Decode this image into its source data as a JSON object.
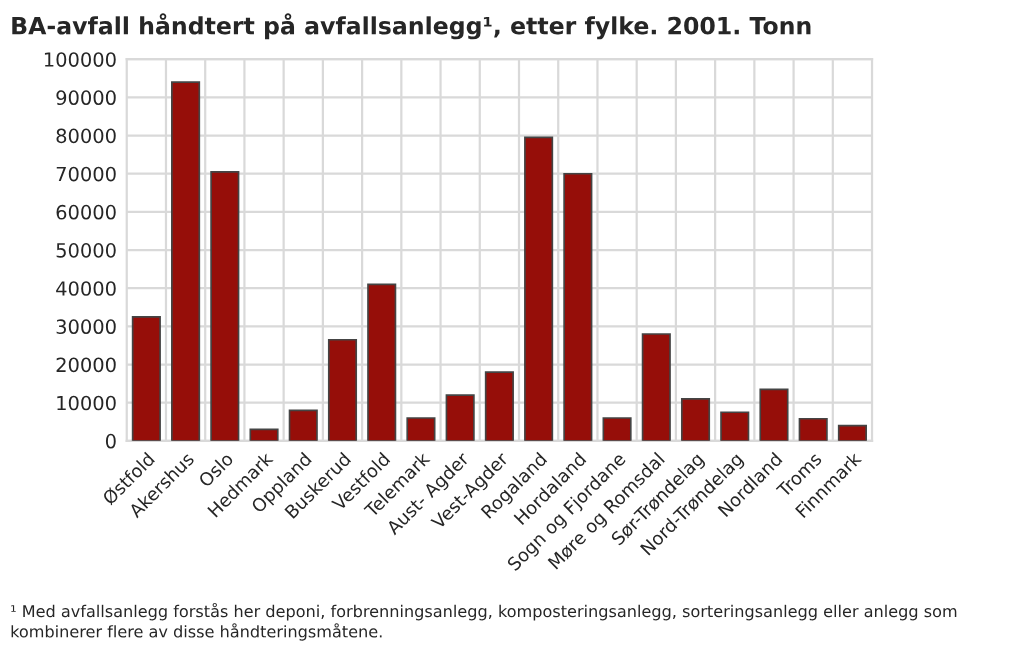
{
  "chart_data": {
    "type": "bar",
    "title": "BA-avfall håndtert på avfallsanlegg¹, etter fylke. 2001. Tonn",
    "categories": [
      "Østfold",
      "Akershus",
      "Oslo",
      "Hedmark",
      "Oppland",
      "Buskerud",
      "Vestfold",
      "Telemark",
      "Aust- Agder",
      "Vest-Agder",
      "Rogaland",
      "Hordaland",
      "Sogn og Fjordane",
      "Møre og Romsdal",
      "Sør-Trøndelag",
      "Nord-Trøndelag",
      "Nordland",
      "Troms",
      "Finnmark"
    ],
    "values": [
      32500,
      94000,
      70500,
      3000,
      8000,
      26500,
      41000,
      6000,
      12000,
      18000,
      79500,
      70000,
      6000,
      28000,
      11000,
      7500,
      13500,
      5800,
      4000
    ],
    "color": "#960e09",
    "ylim": [
      0,
      100000
    ],
    "yticks": [
      0,
      10000,
      20000,
      30000,
      40000,
      50000,
      60000,
      70000,
      80000,
      90000,
      100000
    ],
    "grid": true,
    "annotations": [
      "¹ Med avfallsanlegg forstås her deponi, forbrenningsanlegg, komposteringsanlegg, sorteringsanlegg eller anlegg som kombinerer flere av disse håndteringsmåtene."
    ]
  }
}
